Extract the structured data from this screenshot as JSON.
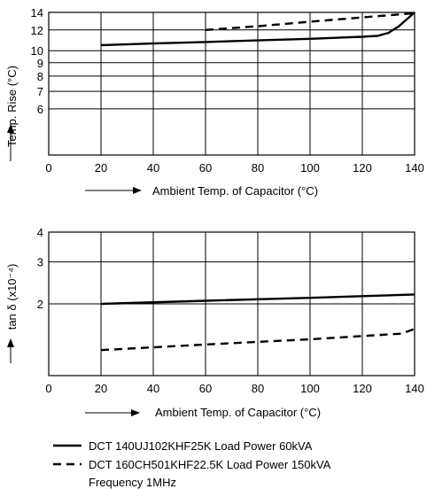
{
  "chart_data": [
    {
      "type": "line",
      "xlabel": "Ambient Temp. of Capacitor (°C)",
      "ylabel": "Temp. Rise (°C)",
      "xlim": [
        0,
        140
      ],
      "ylim": [
        4,
        14
      ],
      "yscale": "log",
      "xticks": [
        0,
        20,
        40,
        60,
        80,
        100,
        120,
        140
      ],
      "yticks": [
        6,
        7,
        8,
        9,
        10,
        12,
        14
      ],
      "grid": true,
      "series": [
        {
          "name": "DCT 140UJ102KHF25K Load Power 60kVA",
          "style": "solid",
          "x": [
            20,
            40,
            60,
            80,
            100,
            120,
            126,
            130,
            134,
            140
          ],
          "y": [
            10.5,
            10.65,
            10.8,
            10.95,
            11.1,
            11.3,
            11.4,
            11.7,
            12.4,
            14.0
          ]
        },
        {
          "name": "DCT 160CH501KHF22.5K Load Power 150kVA",
          "style": "dashed",
          "x": [
            60,
            80,
            100,
            120,
            140
          ],
          "y": [
            12.0,
            12.4,
            12.9,
            13.4,
            13.9
          ]
        }
      ]
    },
    {
      "type": "line",
      "xlabel": "Ambient Temp. of Capacitor (°C)",
      "ylabel": "tan δ (x10⁻⁴)",
      "xlim": [
        0,
        140
      ],
      "ylim": [
        1,
        4
      ],
      "yscale": "log",
      "xticks": [
        0,
        20,
        40,
        60,
        80,
        100,
        120,
        140
      ],
      "yticks": [
        2,
        3,
        4
      ],
      "grid": true,
      "series": [
        {
          "name": "DCT 140UJ102KHF25K Load Power 60kVA",
          "style": "solid",
          "x": [
            20,
            60,
            100,
            140
          ],
          "y": [
            2.0,
            2.06,
            2.12,
            2.19
          ]
        },
        {
          "name": "DCT 160CH501KHF22.5K Load Power 150kVA",
          "style": "dashed",
          "x": [
            20,
            60,
            100,
            135,
            140
          ],
          "y": [
            1.28,
            1.35,
            1.42,
            1.5,
            1.57
          ]
        }
      ]
    }
  ],
  "legend": {
    "items": [
      {
        "label": "DCT 140UJ102KHF25K Load Power 60kVA",
        "style": "solid"
      },
      {
        "label": "DCT 160CH501KHF22.5K Load Power 150kVA",
        "style": "dashed"
      }
    ],
    "note": "Frequency  1MHz"
  }
}
